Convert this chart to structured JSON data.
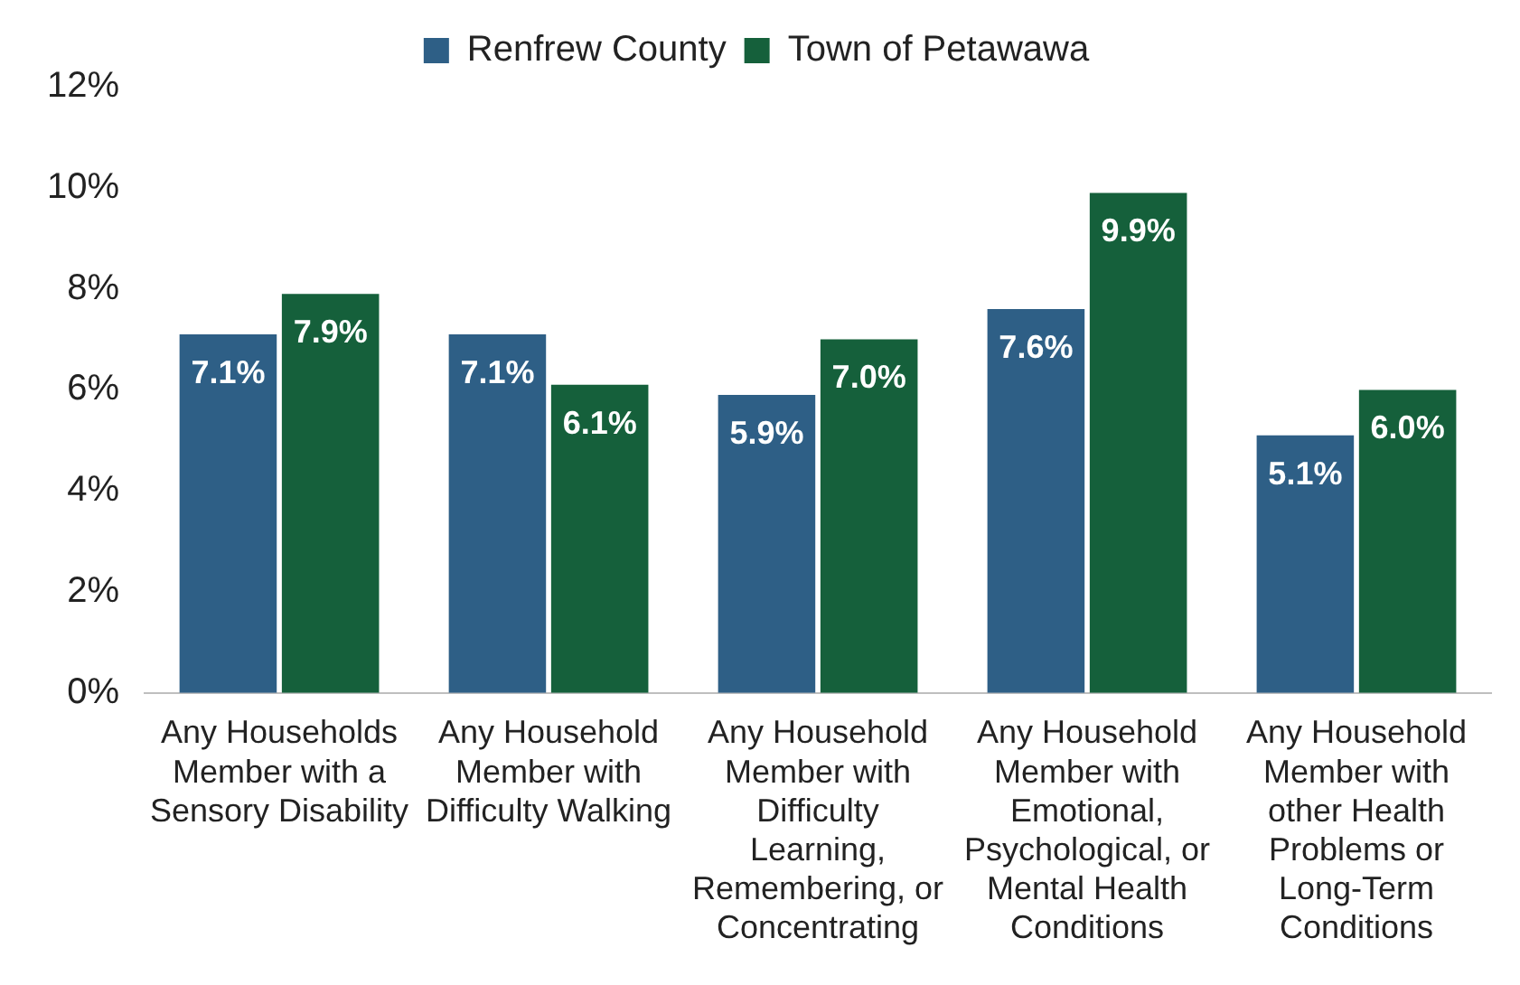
{
  "chart_data": {
    "type": "bar",
    "categories": [
      "Any Households Member with a Sensory Disability",
      "Any Household Member with Difficulty Walking",
      "Any Household Member with Difficulty Learning, Remembering, or Concentrating",
      "Any Household Member with Emotional, Psychological, or Mental Health Conditions",
      "Any Household Member with other Health Problems or Long-Term Conditions"
    ],
    "series": [
      {
        "name": "Renfrew County",
        "color": "#2e5f86",
        "values": [
          7.1,
          7.1,
          5.9,
          7.6,
          5.1
        ],
        "value_labels": [
          "7.1%",
          "7.1%",
          "5.9%",
          "7.6%",
          "5.1%"
        ]
      },
      {
        "name": "Town of Petawawa",
        "color": "#15603b",
        "values": [
          7.9,
          6.1,
          7.0,
          9.9,
          6.0
        ],
        "value_labels": [
          "7.9%",
          "6.1%",
          "7.0%",
          "9.9%",
          "6.0%"
        ]
      }
    ],
    "ylim": [
      0,
      12
    ],
    "yticks": [
      {
        "value": 0,
        "label": "0%"
      },
      {
        "value": 2,
        "label": "2%"
      },
      {
        "value": 4,
        "label": "4%"
      },
      {
        "value": 6,
        "label": "6%"
      },
      {
        "value": 8,
        "label": "8%"
      },
      {
        "value": 10,
        "label": "10%"
      },
      {
        "value": 12,
        "label": "12%"
      }
    ],
    "grid": false,
    "legend": "top"
  }
}
